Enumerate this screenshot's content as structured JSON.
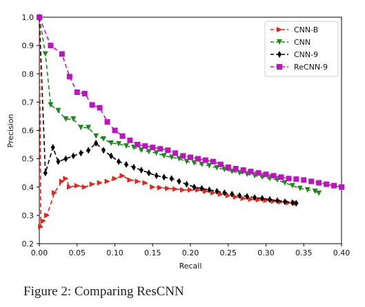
{
  "caption": "Figure 2: Comparing ResCNN",
  "chart_data": {
    "type": "line",
    "xlabel": "Recall",
    "ylabel": "Precision",
    "xlim": [
      0.0,
      0.4
    ],
    "ylim": [
      0.2,
      1.0
    ],
    "xticks": [
      "0.00",
      "0.05",
      "0.10",
      "0.15",
      "0.20",
      "0.25",
      "0.30",
      "0.35",
      "0.40"
    ],
    "yticks": [
      "0.2",
      "0.3",
      "0.4",
      "0.5",
      "0.6",
      "0.7",
      "0.8",
      "0.9",
      "1.0"
    ],
    "grid": false,
    "legend_position": "top-right",
    "series": [
      {
        "name": "CNN-B",
        "color": "#e8231b",
        "marker": "triangle-right",
        "x": [
          0.0,
          0.002,
          0.005,
          0.01,
          0.02,
          0.03,
          0.035,
          0.04,
          0.05,
          0.06,
          0.07,
          0.08,
          0.09,
          0.1,
          0.11,
          0.12,
          0.13,
          0.14,
          0.15,
          0.16,
          0.17,
          0.18,
          0.19,
          0.2,
          0.21,
          0.22,
          0.23,
          0.24,
          0.25,
          0.26,
          0.27,
          0.28,
          0.29,
          0.3,
          0.31,
          0.32,
          0.33,
          0.34
        ],
        "y": [
          1.0,
          0.26,
          0.28,
          0.3,
          0.38,
          0.42,
          0.43,
          0.4,
          0.405,
          0.4,
          0.41,
          0.415,
          0.42,
          0.43,
          0.44,
          0.425,
          0.42,
          0.415,
          0.4,
          0.398,
          0.395,
          0.393,
          0.39,
          0.39,
          0.39,
          0.385,
          0.38,
          0.375,
          0.37,
          0.365,
          0.36,
          0.357,
          0.355,
          0.353,
          0.35,
          0.348,
          0.345,
          0.343
        ]
      },
      {
        "name": "CNN",
        "color": "#1e8a1e",
        "marker": "triangle-down",
        "x": [
          0.0,
          0.008,
          0.015,
          0.025,
          0.035,
          0.045,
          0.055,
          0.065,
          0.075,
          0.085,
          0.095,
          0.105,
          0.115,
          0.125,
          0.135,
          0.145,
          0.155,
          0.165,
          0.175,
          0.185,
          0.195,
          0.205,
          0.215,
          0.225,
          0.235,
          0.245,
          0.255,
          0.265,
          0.275,
          0.285,
          0.295,
          0.305,
          0.315,
          0.325,
          0.335,
          0.345,
          0.355,
          0.365,
          0.37
        ],
        "y": [
          1.0,
          0.87,
          0.69,
          0.67,
          0.64,
          0.64,
          0.61,
          0.61,
          0.58,
          0.57,
          0.555,
          0.553,
          0.545,
          0.54,
          0.53,
          0.525,
          0.52,
          0.51,
          0.505,
          0.5,
          0.49,
          0.485,
          0.48,
          0.475,
          0.468,
          0.462,
          0.455,
          0.45,
          0.445,
          0.44,
          0.435,
          0.43,
          0.425,
          0.415,
          0.405,
          0.395,
          0.39,
          0.385,
          0.378
        ]
      },
      {
        "name": "CNN-9",
        "color": "#000000",
        "marker": "diamond",
        "x": [
          0.0,
          0.008,
          0.018,
          0.025,
          0.035,
          0.045,
          0.055,
          0.065,
          0.075,
          0.085,
          0.095,
          0.105,
          0.115,
          0.125,
          0.135,
          0.145,
          0.155,
          0.165,
          0.175,
          0.185,
          0.195,
          0.205,
          0.215,
          0.225,
          0.235,
          0.245,
          0.255,
          0.265,
          0.275,
          0.285,
          0.295,
          0.305,
          0.315,
          0.325,
          0.335,
          0.34
        ],
        "y": [
          1.0,
          0.45,
          0.54,
          0.49,
          0.5,
          0.51,
          0.52,
          0.53,
          0.555,
          0.53,
          0.51,
          0.49,
          0.48,
          0.47,
          0.46,
          0.45,
          0.44,
          0.435,
          0.43,
          0.42,
          0.41,
          0.4,
          0.395,
          0.39,
          0.385,
          0.38,
          0.375,
          0.37,
          0.367,
          0.363,
          0.36,
          0.356,
          0.352,
          0.348,
          0.345,
          0.343
        ]
      },
      {
        "name": "ReCNN-9",
        "color": "#bb15c0",
        "marker": "square",
        "x": [
          0.0,
          0.015,
          0.03,
          0.04,
          0.05,
          0.06,
          0.07,
          0.08,
          0.09,
          0.1,
          0.11,
          0.12,
          0.13,
          0.14,
          0.15,
          0.16,
          0.17,
          0.18,
          0.19,
          0.2,
          0.21,
          0.22,
          0.23,
          0.24,
          0.25,
          0.26,
          0.27,
          0.28,
          0.29,
          0.3,
          0.31,
          0.32,
          0.33,
          0.34,
          0.35,
          0.36,
          0.37,
          0.38,
          0.39,
          0.4
        ],
        "y": [
          1.0,
          0.9,
          0.87,
          0.79,
          0.735,
          0.73,
          0.69,
          0.68,
          0.63,
          0.6,
          0.58,
          0.565,
          0.55,
          0.545,
          0.54,
          0.535,
          0.53,
          0.52,
          0.51,
          0.505,
          0.5,
          0.495,
          0.49,
          0.48,
          0.47,
          0.465,
          0.46,
          0.455,
          0.45,
          0.445,
          0.44,
          0.435,
          0.43,
          0.428,
          0.425,
          0.42,
          0.415,
          0.41,
          0.405,
          0.4
        ]
      }
    ]
  }
}
